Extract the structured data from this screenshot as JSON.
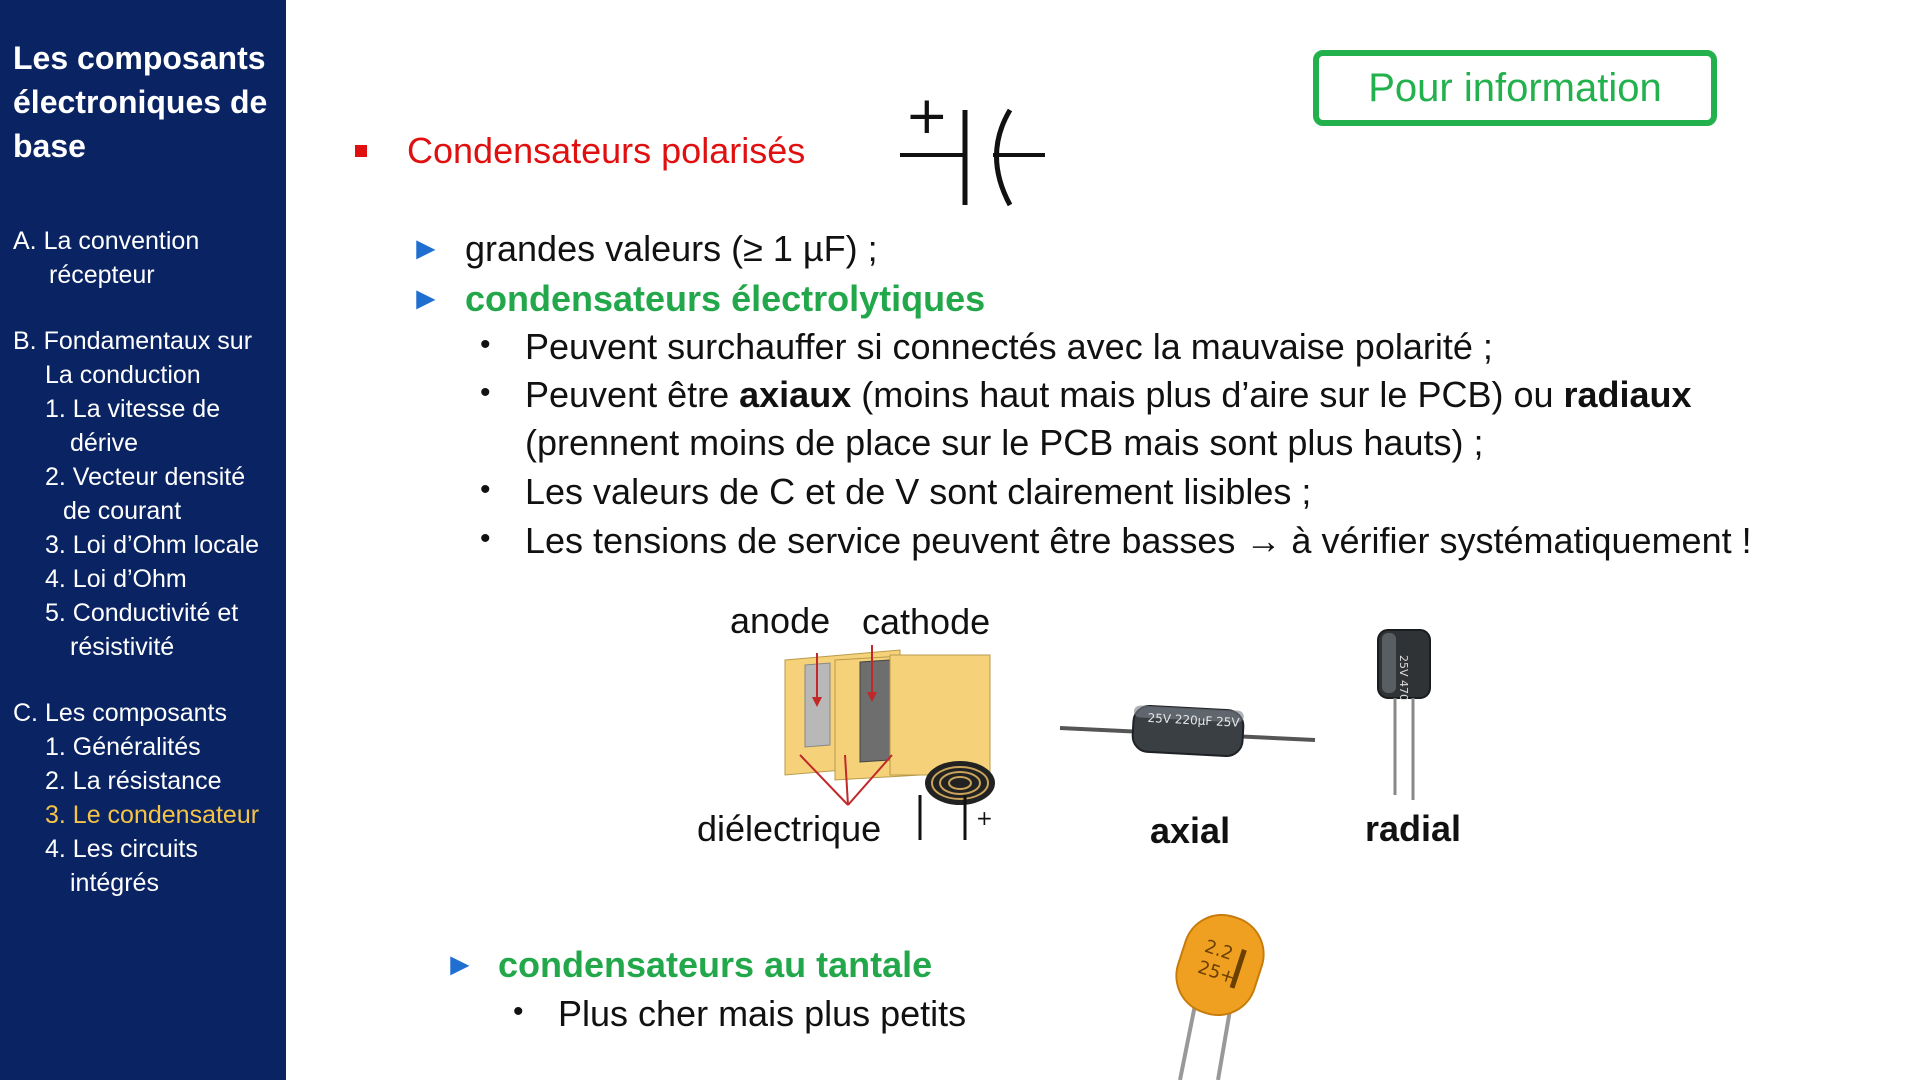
{
  "sidebar": {
    "title": "Les composants électroniques de base",
    "toc": {
      "a1": "A.  La convention",
      "a2": "récepteur",
      "b1": "B.  Fondamentaux sur",
      "b2": "La conduction",
      "b3": "1. La vitesse de",
      "b4": "dérive",
      "b5": "2. Vecteur densité",
      "b6": "de courant",
      "b7": "3. Loi d’Ohm locale",
      "b8": "4. Loi d’Ohm",
      "b9": "5. Conductivité et",
      "b10": "résistivité",
      "c1": "C.  Les composants",
      "c2": "1. Généralités",
      "c3": "2. La résistance",
      "c4": "3. Le condensateur",
      "c5": "4. Les circuits",
      "c6": "intégrés"
    }
  },
  "badge": "Pour information",
  "content": {
    "heading": "Condensateurs polarisés",
    "arrow_glyph": "►",
    "bullet_glyph": "•",
    "item1": "grandes valeurs (≥ 1 µF) ;",
    "item2": "condensateurs électrolytiques",
    "sub1": "Peuvent surchauffer si connectés avec la mauvaise polarité ;",
    "sub2_a": "Peuvent être ",
    "sub2_b": "axiaux",
    "sub2_c": " (moins haut mais plus d’aire sur le PCB) ou ",
    "sub2_d": "radiaux",
    "sub2_e": "(prennent moins de place sur le PCB mais sont plus hauts) ;",
    "sub3": "Les valeurs de C et de V sont clairement lisibles ;",
    "sub4": "Les tensions de service peuvent être basses → à vérifier systématiquement !",
    "item3": "condensateurs au tantale",
    "sub5": "Plus cher mais plus petits"
  },
  "figure": {
    "anode": "anode",
    "cathode": "cathode",
    "dielectric": "diélectrique",
    "plus": "+",
    "axial": "axial",
    "radial": "radial",
    "axial_marking": "25V 220µF 25V",
    "radial_marking": "25V 470",
    "tantalum_marking_1": "2.2",
    "tantalum_marking_2": "25+"
  },
  "symbol": {
    "plus": "+"
  },
  "colors": {
    "sidebar_bg": "#0a2463",
    "active": "#f6c445",
    "red": "#e01010",
    "green": "#22a84a",
    "arrow_blue": "#1f6fd1",
    "badge": "#22b14c"
  }
}
